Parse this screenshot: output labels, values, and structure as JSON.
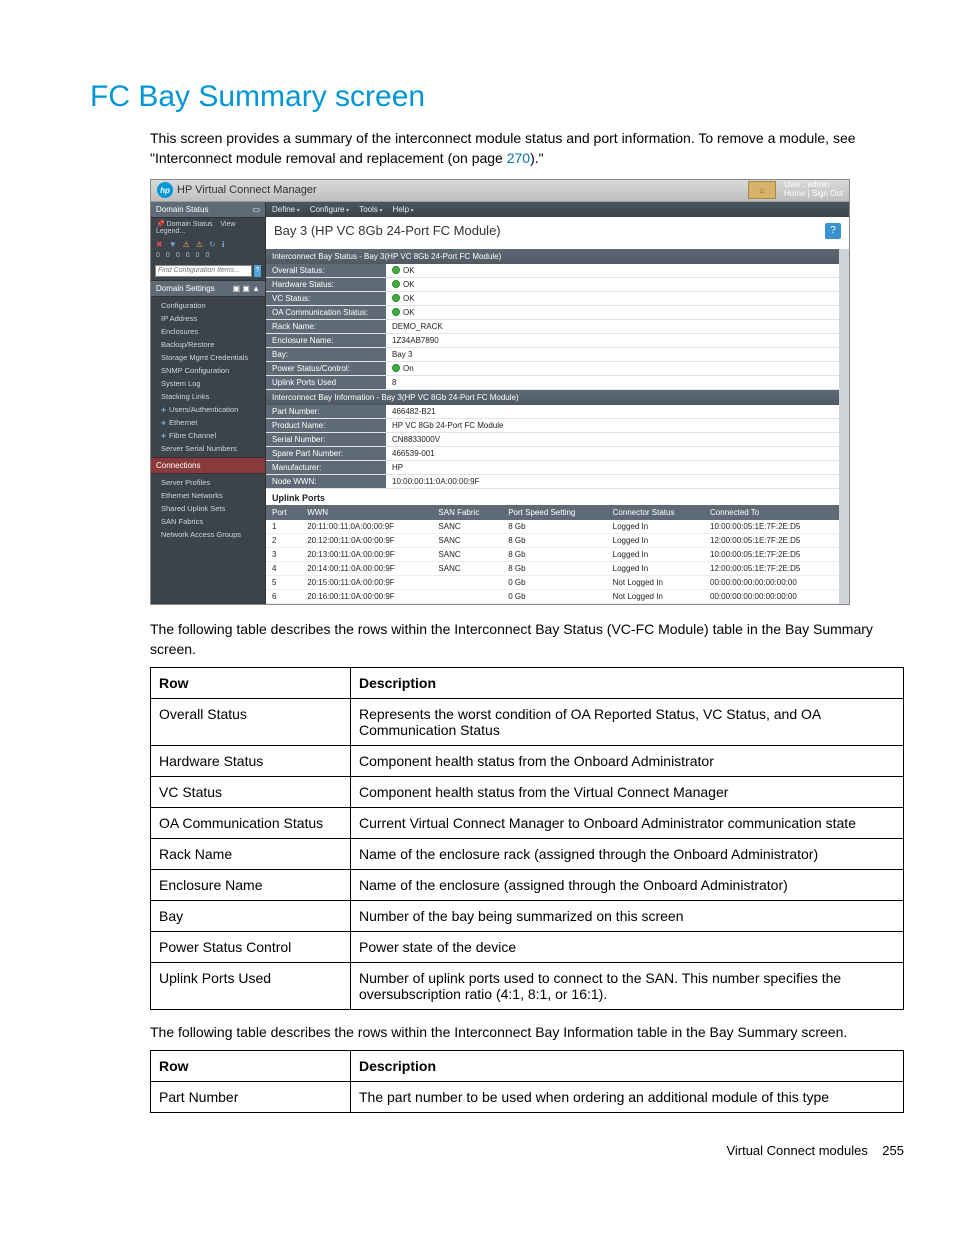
{
  "page": {
    "heading": "FC Bay Summary screen",
    "intro_pre": "This screen provides a summary of the interconnect module status and port information. To remove a module, see \"Interconnect module removal and replacement (on page ",
    "intro_link": "270",
    "intro_post": ").\"",
    "para_status": "The following table describes the rows within the Interconnect Bay Status (VC-FC Module) table in the Bay Summary screen.",
    "para_info": "The following table describes the rows within the Interconnect Bay Information table in the Bay Summary screen.",
    "footer_text": "Virtual Connect modules",
    "footer_page": "255"
  },
  "app": {
    "title": "HP Virtual Connect Manager",
    "user_line1": "User : admin",
    "user_line2": "Home | Sign Out",
    "menubar": [
      "Define",
      "Configure",
      "Tools",
      "Help"
    ],
    "bay_heading": "Bay 3 (HP VC 8Gb 24-Port FC Module)",
    "sidebar": {
      "status_head": "Domain Status",
      "status_sub_a": "Domain Status",
      "status_sub_b": "View Legend...",
      "icons": [
        "✖",
        "▼",
        "⚠",
        "⚠",
        "↻",
        "ℹ"
      ],
      "zeros": [
        "0",
        "0",
        "0",
        "0",
        "0",
        "0"
      ],
      "find_placeholder": "Find Configuration Items...",
      "settings_head": "Domain Settings",
      "settings_items": [
        "Configuration",
        "IP Address",
        "Enclosures",
        "Backup/Restore",
        "Storage Mgmt Credentials",
        "SNMP Configuration",
        "System Log",
        "Stacking Links",
        "Users/Authentication",
        "Ethernet",
        "Fibre Channel",
        "Server Serial Numbers"
      ],
      "connections_head": "Connections",
      "connections_items": [
        "Server Profiles",
        "Ethernet Networks",
        "Shared Uplink Sets",
        "SAN Fabrics",
        "Network Access Groups"
      ]
    },
    "status_panel": {
      "head": "Interconnect Bay Status - Bay 3(HP VC 8Gb 24-Port FC Module)",
      "rows": [
        {
          "k": "Overall Status:",
          "v": "OK",
          "ok": true
        },
        {
          "k": "Hardware Status:",
          "v": "OK",
          "ok": true
        },
        {
          "k": "VC Status:",
          "v": "OK",
          "ok": true
        },
        {
          "k": "OA Communication Status:",
          "v": "OK",
          "ok": true
        },
        {
          "k": "Rack Name:",
          "v": "DEMO_RACK"
        },
        {
          "k": "Enclosure Name:",
          "v": "1Z34AB7890"
        },
        {
          "k": "Bay:",
          "v": "Bay 3"
        },
        {
          "k": "Power Status/Control:",
          "v": "On",
          "ok": true
        },
        {
          "k": "Uplink Ports Used",
          "v": "8"
        }
      ]
    },
    "info_panel": {
      "head": "Interconnect Bay Information - Bay 3(HP VC 8Gb 24-Port FC Module)",
      "rows": [
        {
          "k": "Part Number:",
          "v": "466482-B21"
        },
        {
          "k": "Product Name:",
          "v": "HP VC 8Gb 24-Port FC Module"
        },
        {
          "k": "Serial Number:",
          "v": "CN8833000V"
        },
        {
          "k": "Spare Part Number:",
          "v": "466539-001"
        },
        {
          "k": "Manufacturer:",
          "v": "HP"
        },
        {
          "k": "Node WWN:",
          "v": "10:00:00:11:0A:00:00:9F"
        }
      ]
    },
    "uplink": {
      "title": "Uplink Ports",
      "headers": [
        "Port",
        "WWN",
        "SAN Fabric",
        "Port Speed Setting",
        "Connector Status",
        "Connected To"
      ],
      "rows": [
        [
          "1",
          "20:11:00:11:0A:00:00:9F",
          "SANC",
          "8 Gb",
          "Logged In",
          "10:00:00:05:1E:7F:2E:D5"
        ],
        [
          "2",
          "20:12:00:11:0A:00:00:9F",
          "SANC",
          "8 Gb",
          "Logged In",
          "12:00:00:05:1E:7F:2E:D5"
        ],
        [
          "3",
          "20:13:00:11:0A:00:00:9F",
          "SANC",
          "8 Gb",
          "Logged In",
          "10:00:00:05:1E:7F:2E:D5"
        ],
        [
          "4",
          "20:14:00:11:0A:00:00:9F",
          "SANC",
          "8 Gb",
          "Logged In",
          "12:00:00:05:1E:7F:2E:D5"
        ],
        [
          "5",
          "20:15:00:11:0A:00:00:9F",
          "",
          "0 Gb",
          "Not Logged In",
          "00:00:00:00:00:00:00:00"
        ],
        [
          "6",
          "20:16:00:11:0A:00:00:9F",
          "",
          "0 Gb",
          "Not Logged In",
          "00:00:00:00:00:00:00:00"
        ]
      ]
    }
  },
  "desc_tables": {
    "header_row": "Row",
    "header_desc": "Description",
    "status": [
      [
        "Overall Status",
        "Represents the worst condition of OA Reported Status, VC Status, and OA Communication Status"
      ],
      [
        "Hardware Status",
        "Component health status from the Onboard Administrator"
      ],
      [
        "VC Status",
        "Component health status from the Virtual Connect Manager"
      ],
      [
        "OA Communication Status",
        "Current Virtual Connect Manager to Onboard Administrator communication state"
      ],
      [
        "Rack Name",
        "Name of the enclosure rack (assigned through the Onboard Administrator)"
      ],
      [
        "Enclosure Name",
        "Name of the enclosure (assigned through the Onboard Administrator)"
      ],
      [
        "Bay",
        "Number of the bay being summarized on this screen"
      ],
      [
        "Power Status Control",
        "Power state of the device"
      ],
      [
        "Uplink Ports Used",
        "Number of uplink ports used to connect to the SAN. This number specifies the oversubscription ratio (4:1, 8:1, or 16:1)."
      ]
    ],
    "info": [
      [
        "Part Number",
        "The part number to be used when ordering an additional module of this type"
      ]
    ]
  },
  "colors": {
    "heading": "#0197d6",
    "link": "#0073a8",
    "sidebar_bg": "#3c434a",
    "section_bg": "#5e6b77",
    "ok_green": "#3fae3f",
    "selected_bg": "#8a3a3a"
  }
}
